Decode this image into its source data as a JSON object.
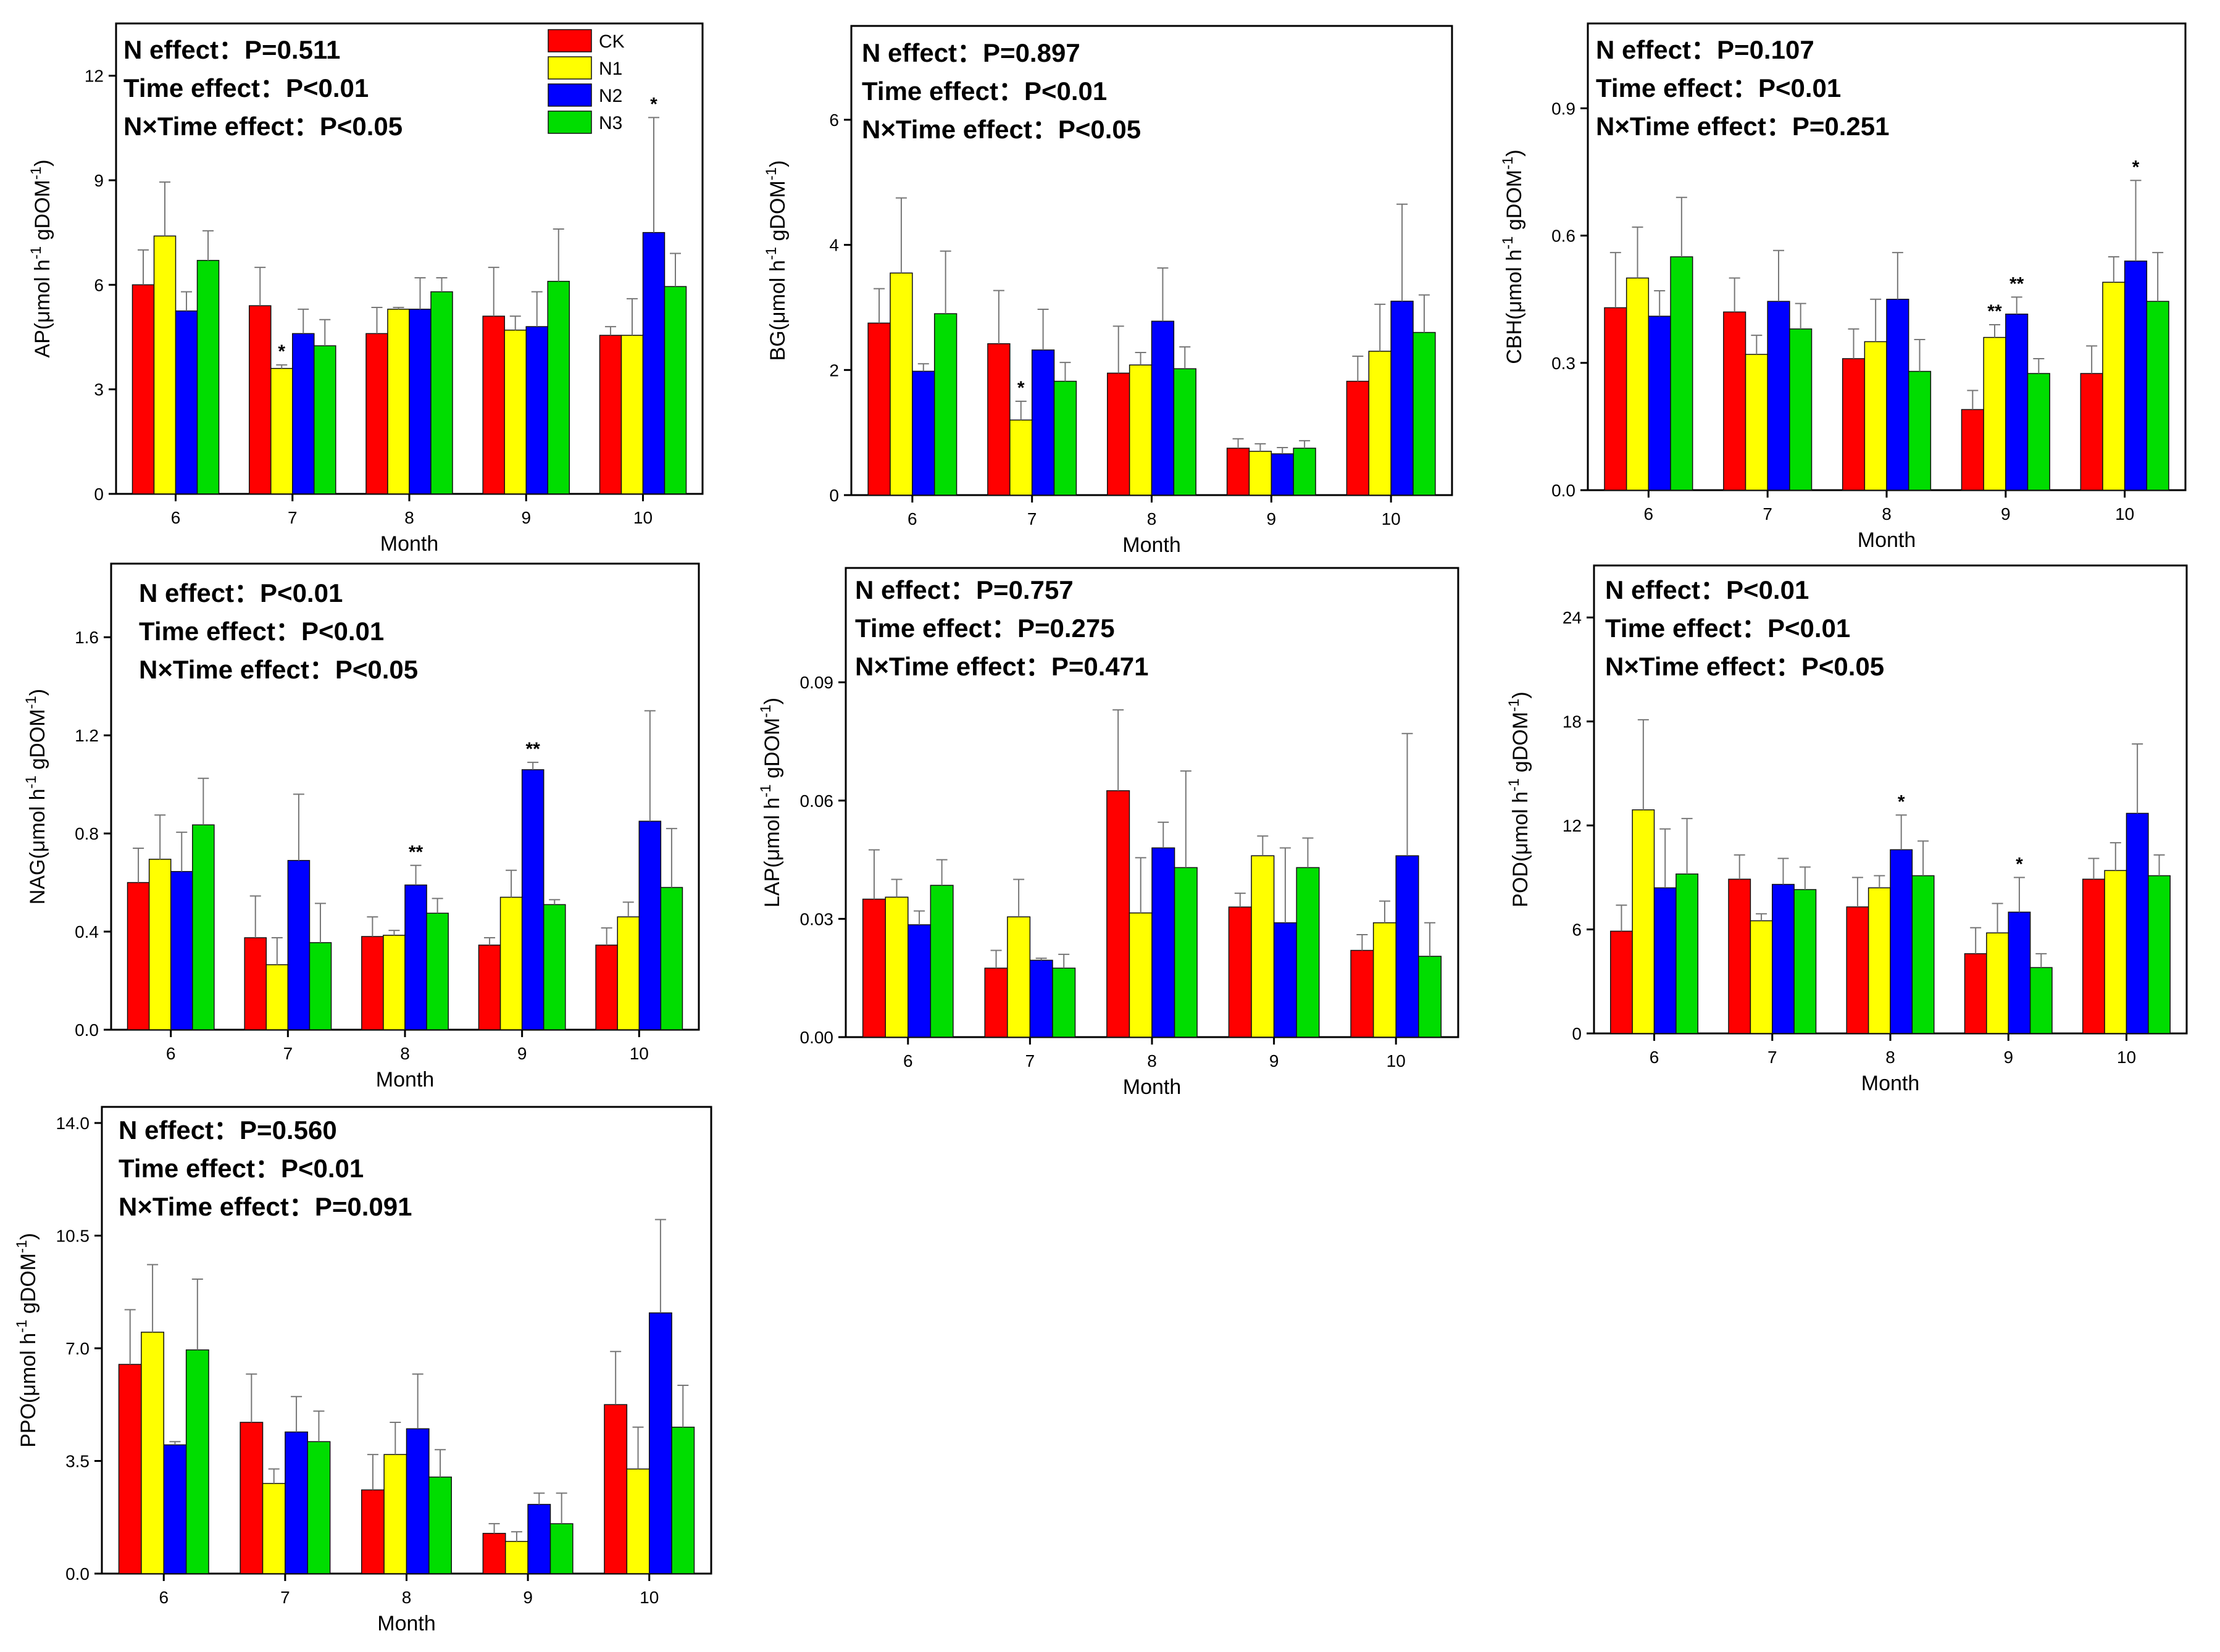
{
  "legend": [
    {
      "name": "CK",
      "color": "#ff0000"
    },
    {
      "name": "N1",
      "color": "#ffff00"
    },
    {
      "name": "N2",
      "color": "#0000ff"
    },
    {
      "name": "N3",
      "color": "#00dd00"
    }
  ],
  "chart_data": [
    {
      "type": "bar",
      "name": "AP",
      "ylabel": "AP(μmol h-1 gDOM-1)",
      "ylabel_base": "AP(μmol h",
      "ylabel_unit": " gDOM",
      "ylabel_sup": "-1",
      "xlabel": "Month",
      "categories": [
        "6",
        "7",
        "8",
        "9",
        "10"
      ],
      "ylim": [
        0,
        13.5
      ],
      "yticks": [
        "0",
        "3",
        "6",
        "9",
        "12"
      ],
      "ytick_values": [
        0,
        3,
        6,
        9,
        12
      ],
      "stats": [
        "N effect：P=0.511",
        "Time effect：P<0.01",
        "N×Time effect：P<0.05"
      ],
      "series": [
        {
          "name": "CK",
          "values": [
            6.0,
            5.4,
            4.6,
            5.1,
            4.55
          ],
          "errors": [
            1.0,
            1.1,
            0.75,
            1.4,
            0.25
          ]
        },
        {
          "name": "N1",
          "values": [
            7.4,
            3.6,
            5.3,
            4.7,
            4.55
          ],
          "errors": [
            1.55,
            0.1,
            0.05,
            0.4,
            1.05
          ]
        },
        {
          "name": "N2",
          "values": [
            5.25,
            4.6,
            5.3,
            4.8,
            7.5
          ],
          "errors": [
            0.55,
            0.7,
            0.9,
            1.0,
            3.3
          ]
        },
        {
          "name": "N3",
          "values": [
            6.7,
            4.25,
            5.8,
            6.1,
            5.95
          ],
          "errors": [
            0.85,
            0.75,
            0.4,
            1.5,
            0.95
          ]
        }
      ],
      "significance": [
        {
          "series": "N1",
          "month": "7",
          "label": "*"
        },
        {
          "series": "N2",
          "month": "10",
          "label": "*"
        }
      ]
    },
    {
      "type": "bar",
      "name": "BG",
      "ylabel": "BG(μmol h-1 gDOM-1)",
      "ylabel_base": "BG(μmol h",
      "ylabel_unit": " gDOM",
      "ylabel_sup": "-1",
      "xlabel": "Month",
      "categories": [
        "6",
        "7",
        "8",
        "9",
        "10"
      ],
      "ylim": [
        0,
        7.5
      ],
      "yticks": [
        "0",
        "2",
        "4",
        "6"
      ],
      "ytick_values": [
        0,
        2,
        4,
        6
      ],
      "stats": [
        "N effect：P=0.897",
        "Time effect：P<0.01",
        "N×Time effect：P<0.05"
      ],
      "series": [
        {
          "name": "CK",
          "values": [
            2.75,
            2.42,
            1.95,
            0.75,
            1.82
          ],
          "errors": [
            0.55,
            0.85,
            0.75,
            0.15,
            0.4
          ]
        },
        {
          "name": "N1",
          "values": [
            3.55,
            1.2,
            2.08,
            0.7,
            2.3
          ],
          "errors": [
            1.2,
            0.3,
            0.2,
            0.12,
            0.75
          ]
        },
        {
          "name": "N2",
          "values": [
            1.98,
            2.32,
            2.78,
            0.66,
            3.1
          ],
          "errors": [
            0.12,
            0.65,
            0.85,
            0.1,
            1.55
          ]
        },
        {
          "name": "N3",
          "values": [
            2.9,
            1.82,
            2.02,
            0.75,
            2.6
          ],
          "errors": [
            1.0,
            0.3,
            0.35,
            0.12,
            0.6
          ]
        }
      ],
      "significance": [
        {
          "series": "N1",
          "month": "7",
          "label": "*"
        }
      ]
    },
    {
      "type": "bar",
      "name": "CBH",
      "ylabel": "CBH(μmol h-1 gDOM-1)",
      "ylabel_base": "CBH(μmol h",
      "ylabel_unit": " gDOM",
      "ylabel_sup": "-1",
      "xlabel": "Month",
      "categories": [
        "6",
        "7",
        "8",
        "9",
        "10"
      ],
      "ylim": [
        0,
        1.1
      ],
      "yticks": [
        "0.0",
        "0.3",
        "0.6",
        "0.9"
      ],
      "ytick_values": [
        0,
        0.3,
        0.6,
        0.9
      ],
      "stats": [
        "N effect：P=0.107",
        "Time effect：P<0.01",
        "N×Time effect：P=0.251"
      ],
      "series": [
        {
          "name": "CK",
          "values": [
            0.43,
            0.42,
            0.31,
            0.19,
            0.275
          ],
          "errors": [
            0.13,
            0.08,
            0.07,
            0.045,
            0.065
          ]
        },
        {
          "name": "N1",
          "values": [
            0.5,
            0.32,
            0.35,
            0.36,
            0.49
          ],
          "errors": [
            0.12,
            0.045,
            0.1,
            0.03,
            0.06
          ]
        },
        {
          "name": "N2",
          "values": [
            0.41,
            0.445,
            0.45,
            0.415,
            0.54
          ],
          "errors": [
            0.06,
            0.12,
            0.11,
            0.04,
            0.19
          ]
        },
        {
          "name": "N3",
          "values": [
            0.55,
            0.38,
            0.28,
            0.275,
            0.445
          ],
          "errors": [
            0.14,
            0.06,
            0.075,
            0.035,
            0.115
          ]
        }
      ],
      "significance": [
        {
          "series": "N1",
          "month": "9",
          "label": "**"
        },
        {
          "series": "N2",
          "month": "9",
          "label": "**"
        },
        {
          "series": "N2",
          "month": "10",
          "label": "*"
        }
      ]
    },
    {
      "type": "bar",
      "name": "NAG",
      "ylabel": "NAG(μmol h-1 gDOM-1)",
      "ylabel_base": "NAG(μmol h",
      "ylabel_unit": " gDOM",
      "ylabel_sup": "-1",
      "xlabel": "Month",
      "categories": [
        "6",
        "7",
        "8",
        "9",
        "10"
      ],
      "ylim": [
        0,
        1.9
      ],
      "yticks": [
        "0.0",
        "0.4",
        "0.8",
        "1.2",
        "1.6"
      ],
      "ytick_values": [
        0,
        0.4,
        0.8,
        1.2,
        1.6
      ],
      "stats": [
        "N effect：P<0.01",
        "Time effect：P<0.01",
        "N×Time effect：P<0.05"
      ],
      "series": [
        {
          "name": "CK",
          "values": [
            0.6,
            0.375,
            0.38,
            0.345,
            0.345
          ],
          "errors": [
            0.14,
            0.17,
            0.08,
            0.03,
            0.07
          ]
        },
        {
          "name": "N1",
          "values": [
            0.695,
            0.265,
            0.385,
            0.54,
            0.46
          ],
          "errors": [
            0.18,
            0.11,
            0.02,
            0.11,
            0.06
          ]
        },
        {
          "name": "N2",
          "values": [
            0.645,
            0.69,
            0.59,
            1.06,
            0.85
          ],
          "errors": [
            0.16,
            0.27,
            0.08,
            0.03,
            0.45
          ]
        },
        {
          "name": "N3",
          "values": [
            0.835,
            0.355,
            0.475,
            0.51,
            0.58
          ],
          "errors": [
            0.19,
            0.16,
            0.06,
            0.02,
            0.24
          ]
        }
      ],
      "significance": [
        {
          "series": "N2",
          "month": "8",
          "label": "**"
        },
        {
          "series": "N2",
          "month": "9",
          "label": "**"
        }
      ]
    },
    {
      "type": "bar",
      "name": "LAP",
      "ylabel": "LAP(μmol h-1 gDOM-1)",
      "ylabel_base": "LAP(μmol h",
      "ylabel_unit": " gDOM",
      "ylabel_sup": "-1",
      "xlabel": "Month",
      "categories": [
        "6",
        "7",
        "8",
        "9",
        "10"
      ],
      "ylim": [
        0,
        0.119
      ],
      "yticks": [
        "0.00",
        "0.03",
        "0.06",
        "0.09"
      ],
      "ytick_values": [
        0,
        0.03,
        0.06,
        0.09
      ],
      "stats": [
        "N effect：P=0.757",
        "Time effect：P=0.275",
        "N×Time effect：P=0.471"
      ],
      "series": [
        {
          "name": "CK",
          "values": [
            0.035,
            0.0175,
            0.0625,
            0.033,
            0.022
          ],
          "errors": [
            0.0125,
            0.0045,
            0.0205,
            0.0035,
            0.004
          ]
        },
        {
          "name": "N1",
          "values": [
            0.0355,
            0.0305,
            0.0315,
            0.046,
            0.029
          ],
          "errors": [
            0.0045,
            0.0095,
            0.014,
            0.005,
            0.0055
          ]
        },
        {
          "name": "N2",
          "values": [
            0.0285,
            0.0195,
            0.048,
            0.029,
            0.046
          ],
          "errors": [
            0.0035,
            0.0005,
            0.0065,
            0.019,
            0.031
          ]
        },
        {
          "name": "N3",
          "values": [
            0.0385,
            0.0175,
            0.043,
            0.043,
            0.0205
          ],
          "errors": [
            0.0065,
            0.0035,
            0.0245,
            0.0075,
            0.0085
          ]
        }
      ],
      "significance": []
    },
    {
      "type": "bar",
      "name": "POD",
      "ylabel": "POD(μmol h-1 gDOM-1)",
      "ylabel_base": "POD(μmol h",
      "ylabel_unit": " gDOM",
      "ylabel_sup": "-1",
      "xlabel": "Month",
      "categories": [
        "6",
        "7",
        "8",
        "9",
        "10"
      ],
      "ylim": [
        0,
        27
      ],
      "yticks": [
        "0",
        "6",
        "12",
        "18",
        "24"
      ],
      "ytick_values": [
        0,
        6,
        12,
        18,
        24
      ],
      "stats": [
        "N effect：P<0.01",
        "Time effect：P<0.01",
        "N×Time effect：P<0.05"
      ],
      "series": [
        {
          "name": "CK",
          "values": [
            5.9,
            8.9,
            7.3,
            4.6,
            8.9
          ],
          "errors": [
            1.5,
            1.4,
            1.7,
            1.5,
            1.2
          ]
        },
        {
          "name": "N1",
          "values": [
            12.9,
            6.5,
            8.4,
            5.8,
            9.4
          ],
          "errors": [
            5.2,
            0.4,
            0.7,
            1.7,
            1.6
          ]
        },
        {
          "name": "N2",
          "values": [
            8.4,
            8.6,
            10.6,
            7.0,
            12.7
          ],
          "errors": [
            3.4,
            1.5,
            2.0,
            2.0,
            4.0
          ]
        },
        {
          "name": "N3",
          "values": [
            9.2,
            8.3,
            9.1,
            3.8,
            9.1
          ],
          "errors": [
            3.2,
            1.3,
            2.0,
            0.8,
            1.2
          ]
        }
      ],
      "significance": [
        {
          "series": "N2",
          "month": "8",
          "label": "*"
        },
        {
          "series": "N2",
          "month": "9",
          "label": "*"
        }
      ]
    },
    {
      "type": "bar",
      "name": "PPO",
      "ylabel": "PPO(μmol h-1 gDOM-1)",
      "ylabel_base": "PPO(μmol h",
      "ylabel_unit": " gDOM",
      "ylabel_sup": "-1",
      "xlabel": "Month",
      "categories": [
        "6",
        "7",
        "8",
        "9",
        "10"
      ],
      "ylim": [
        0,
        14.5
      ],
      "yticks": [
        "0.0",
        "3.5",
        "7.0",
        "10.5",
        "14.0"
      ],
      "ytick_values": [
        0,
        3.5,
        7,
        10.5,
        14
      ],
      "stats": [
        "N effect：P=0.560",
        "Time effect：P<0.01",
        "N×Time effect：P=0.091"
      ],
      "series": [
        {
          "name": "CK",
          "values": [
            6.5,
            4.7,
            2.6,
            1.25,
            5.25
          ],
          "errors": [
            1.7,
            1.5,
            1.1,
            0.3,
            1.65
          ]
        },
        {
          "name": "N1",
          "values": [
            7.5,
            2.8,
            3.7,
            1.0,
            3.25
          ],
          "errors": [
            2.1,
            0.45,
            1.0,
            0.3,
            1.3
          ]
        },
        {
          "name": "N2",
          "values": [
            4.0,
            4.4,
            4.5,
            2.15,
            8.1
          ],
          "errors": [
            0.1,
            1.1,
            1.7,
            0.35,
            2.9
          ]
        },
        {
          "name": "N3",
          "values": [
            6.95,
            4.1,
            3.0,
            1.55,
            4.55
          ],
          "errors": [
            2.2,
            0.95,
            0.85,
            0.95,
            1.3
          ]
        }
      ],
      "significance": []
    }
  ]
}
